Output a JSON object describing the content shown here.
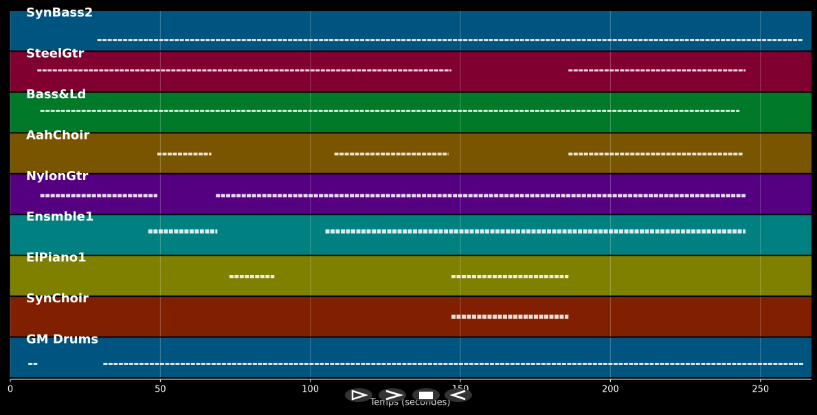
{
  "chart_data": {
    "type": "tracks",
    "xlabel": "Temps (secondes)",
    "xlim": [
      0,
      267
    ],
    "xticks": [
      0,
      50,
      100,
      150,
      200,
      250
    ],
    "grid": true,
    "series": [
      {
        "name": "SynBass2",
        "color": "#005580",
        "segments": [
          [
            29,
            264
          ]
        ]
      },
      {
        "name": "SteelGtr",
        "color": "#800030",
        "segments": [
          [
            9,
            147
          ],
          [
            186,
            245
          ]
        ]
      },
      {
        "name": "Bass&Ld",
        "color": "#007a28",
        "segments": [
          [
            10,
            243
          ]
        ]
      },
      {
        "name": "AahChoir",
        "color": "#7a5500",
        "segments": [
          [
            49,
            67
          ],
          [
            108,
            146
          ],
          [
            186,
            244
          ]
        ]
      },
      {
        "name": "NylonGtr",
        "color": "#550080",
        "segments": [
          [
            10,
            49
          ],
          [
            68.5,
            245
          ]
        ]
      },
      {
        "name": "Ensmble1",
        "color": "#008080",
        "segments": [
          [
            46,
            69
          ],
          [
            105,
            245
          ]
        ]
      },
      {
        "name": "ElPiano1",
        "color": "#808000",
        "segments": [
          [
            73,
            88
          ],
          [
            147,
            186
          ]
        ]
      },
      {
        "name": "SynChoir",
        "color": "#802000",
        "segments": [
          [
            147,
            186
          ]
        ]
      },
      {
        "name": "GM Drums",
        "color": "#005580",
        "segments": [
          [
            6,
            9
          ],
          [
            31,
            264.5
          ]
        ]
      }
    ]
  }
}
